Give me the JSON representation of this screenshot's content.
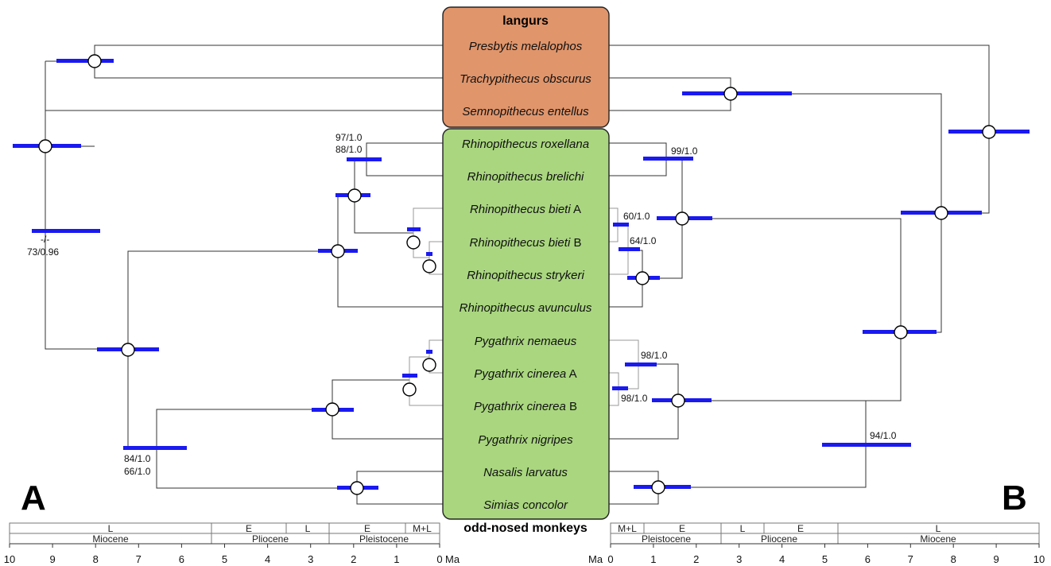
{
  "panels": {
    "left": "A",
    "right": "B"
  },
  "groups": {
    "langurs": "langurs",
    "odd_nosed": "odd-nosed monkeys"
  },
  "colors": {
    "langurs_box": "#e0956b",
    "odd_nosed_box": "#a9d67f",
    "hpd_bar": "#1a1af0"
  },
  "taxa": [
    {
      "genus": "Presbytis melalophos",
      "suffix": ""
    },
    {
      "genus": "Trachypithecus obscurus",
      "suffix": ""
    },
    {
      "genus": "Semnopithecus entellus",
      "suffix": ""
    },
    {
      "genus": "Rhinopithecus roxellana",
      "suffix": ""
    },
    {
      "genus": "Rhinopithecus brelichi",
      "suffix": ""
    },
    {
      "genus": "Rhinopithecus bieti",
      "suffix": " A"
    },
    {
      "genus": "Rhinopithecus bieti",
      "suffix": " B"
    },
    {
      "genus": "Rhinopithecus strykeri",
      "suffix": ""
    },
    {
      "genus": "Rhinopithecus avunculus",
      "suffix": ""
    },
    {
      "genus": "Pygathrix nemaeus",
      "suffix": ""
    },
    {
      "genus": "Pygathrix cinerea",
      "suffix": " A"
    },
    {
      "genus": "Pygathrix cinerea",
      "suffix": " B"
    },
    {
      "genus": "Pygathrix nigripes",
      "suffix": ""
    },
    {
      "genus": "Nasalis larvatus",
      "suffix": ""
    },
    {
      "genus": "Simias concolor",
      "suffix": ""
    }
  ],
  "support_labels_A": [
    "97/1.0",
    "88/1.0",
    "-/-",
    "73/0.96",
    "84/1.0",
    "66/1.0"
  ],
  "support_labels_B": [
    "99/1.0",
    "60/1.0",
    "64/1.0",
    "98/1.0",
    "98/1.0",
    "94/1.0"
  ],
  "axis": {
    "unit": "Ma",
    "ticks_A": [
      "10",
      "9",
      "8",
      "7",
      "6",
      "5",
      "4",
      "3",
      "2",
      "1",
      "0"
    ],
    "ticks_B": [
      "0",
      "1",
      "2",
      "3",
      "4",
      "5",
      "6",
      "7",
      "8",
      "9",
      "10"
    ]
  },
  "epochs_A": [
    "Miocene",
    "Pliocene",
    "Pleistocene"
  ],
  "stages_A": [
    "L",
    "E",
    "L",
    "E",
    "M+L"
  ],
  "epochs_B": [
    "Pleistocene",
    "Pliocene",
    "Miocene"
  ],
  "stages_B": [
    "M+L",
    "E",
    "L",
    "E",
    "L"
  ]
}
